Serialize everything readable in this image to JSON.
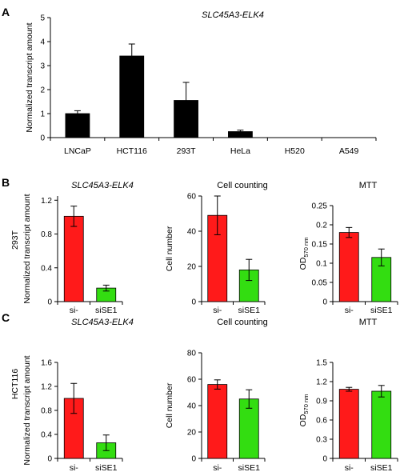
{
  "panels": [
    {
      "letter": "A"
    },
    {
      "letter": "B",
      "row_label": "293T"
    },
    {
      "letter": "C",
      "row_label": "HCT116"
    }
  ],
  "colors": {
    "black": "#000000",
    "red": "#ff1a1a",
    "green": "#33dd11"
  },
  "chart_data": [
    {
      "id": "A",
      "type": "bar",
      "title": "SLC45A3-ELK4",
      "ylabel": "Normalized transcript amount",
      "categories": [
        "LNCaP",
        "HCT116",
        "293T",
        "HeLa",
        "H520",
        "A549"
      ],
      "values": [
        1.0,
        3.4,
        1.55,
        0.25,
        0,
        0
      ],
      "errors": [
        0.12,
        0.5,
        0.75,
        0.06,
        0,
        0
      ],
      "bar_colors": [
        "#000000",
        "#000000",
        "#000000",
        "#000000",
        "#000000",
        "#000000"
      ],
      "ylim": [
        0,
        5
      ],
      "yticks": [
        0,
        1,
        2,
        3,
        4,
        5
      ],
      "ytick_labels": [
        "0",
        "1",
        "2",
        "3",
        "4",
        "5"
      ],
      "grid": false
    },
    {
      "id": "B1",
      "type": "bar",
      "title": "SLC45A3-ELK4",
      "ylabel": "Normalized transcript amount",
      "categories": [
        "si-",
        "siSE1"
      ],
      "values": [
        1.01,
        0.16
      ],
      "errors": [
        0.12,
        0.035
      ],
      "bar_colors": [
        "#ff1a1a",
        "#33dd11"
      ],
      "ylim": [
        0,
        1.25
      ],
      "yticks": [
        0,
        0.4,
        0.8,
        1.2
      ],
      "ytick_labels": [
        "0",
        "0.4",
        "0.8",
        "1.2"
      ],
      "grid": false
    },
    {
      "id": "B2",
      "type": "bar",
      "title": "Cell counting",
      "ylabel": "Cell number",
      "categories": [
        "si-",
        "siSE1"
      ],
      "values": [
        49,
        18
      ],
      "errors": [
        11,
        6
      ],
      "bar_colors": [
        "#ff1a1a",
        "#33dd11"
      ],
      "ylim": [
        0,
        60
      ],
      "yticks": [
        0,
        20,
        40,
        60
      ],
      "ytick_labels": [
        "0",
        "20",
        "40",
        "60"
      ],
      "grid": false
    },
    {
      "id": "B3",
      "type": "bar",
      "title": "MTT",
      "ylabel": "OD",
      "ylabel_sub": "570 nm",
      "categories": [
        "si-",
        "siSE1"
      ],
      "values": [
        0.18,
        0.115
      ],
      "errors": [
        0.013,
        0.022
      ],
      "bar_colors": [
        "#ff1a1a",
        "#33dd11"
      ],
      "ylim": [
        0,
        0.25
      ],
      "yticks": [
        0,
        0.05,
        0.1,
        0.15,
        0.2,
        0.25
      ],
      "ytick_labels": [
        "0",
        "0.05",
        "0.1",
        "0.15",
        "0.2",
        "0.25"
      ],
      "grid": false
    },
    {
      "id": "C1",
      "type": "bar",
      "title": "SLC45A3-ELK4",
      "ylabel": "Normalized transcript amount",
      "categories": [
        "si-",
        "siSE1"
      ],
      "values": [
        1.0,
        0.26
      ],
      "errors": [
        0.25,
        0.13
      ],
      "bar_colors": [
        "#ff1a1a",
        "#33dd11"
      ],
      "ylim": [
        0,
        1.6
      ],
      "yticks": [
        0,
        0.4,
        0.8,
        1.2,
        1.6
      ],
      "ytick_labels": [
        "0",
        "0.4",
        "0.8",
        "1.2",
        "1.6"
      ],
      "grid": false
    },
    {
      "id": "C2",
      "type": "bar",
      "title": "Cell counting",
      "ylabel": "Cell number",
      "categories": [
        "si-",
        "siSE1"
      ],
      "values": [
        56,
        45
      ],
      "errors": [
        3.5,
        7
      ],
      "bar_colors": [
        "#ff1a1a",
        "#33dd11"
      ],
      "ylim": [
        0,
        80
      ],
      "yticks": [
        0,
        20,
        40,
        60,
        80
      ],
      "ytick_labels": [
        "0",
        "20",
        "40",
        "60",
        "80"
      ],
      "grid": false
    },
    {
      "id": "C3",
      "type": "bar",
      "title": "MTT",
      "ylabel": "OD",
      "ylabel_sub": "570 nm",
      "categories": [
        "si-",
        "siSE1"
      ],
      "values": [
        1.08,
        1.05
      ],
      "errors": [
        0.03,
        0.09
      ],
      "bar_colors": [
        "#ff1a1a",
        "#33dd11"
      ],
      "ylim": [
        0,
        1.5
      ],
      "yticks": [
        0,
        0.3,
        0.6,
        0.9,
        1.2,
        1.5
      ],
      "ytick_labels": [
        "0",
        "0.3",
        "0.6",
        "0.9",
        "1.2",
        "1.5"
      ],
      "grid": false
    }
  ]
}
